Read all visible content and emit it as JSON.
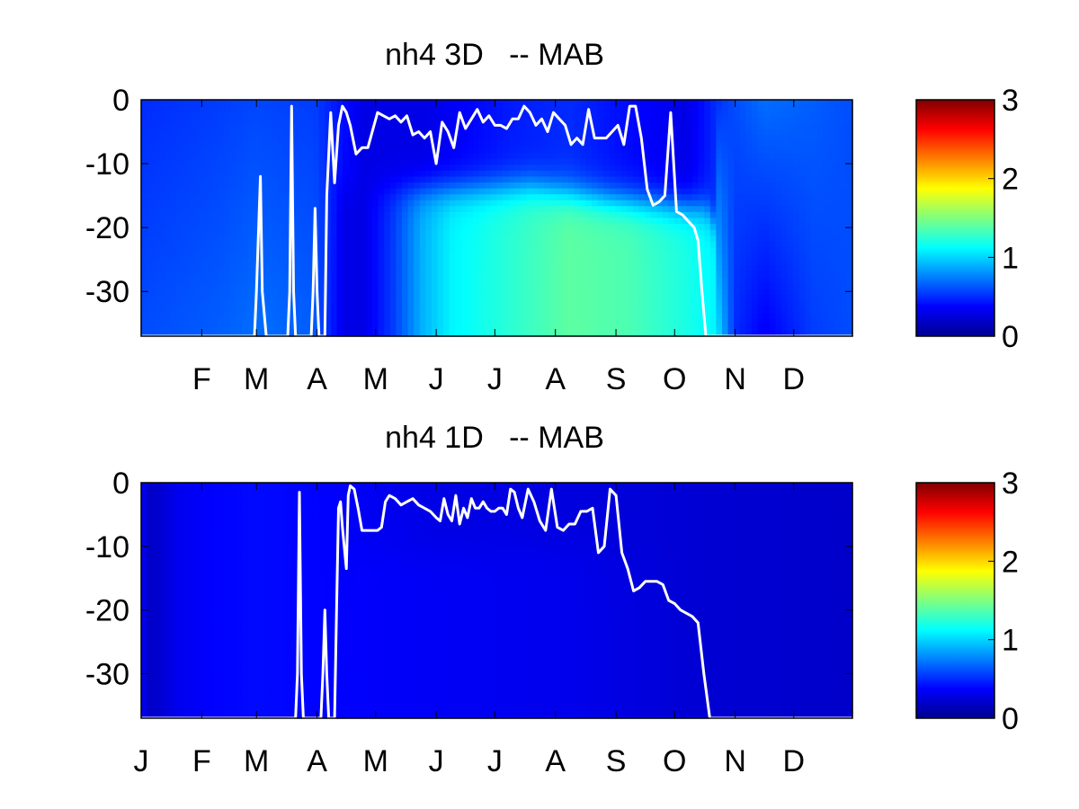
{
  "chart_data": [
    {
      "type": "heatmap",
      "title": "nh4 3D   -- MAB",
      "xlabel": "",
      "ylabel": "",
      "x_tick_labels": [
        "F",
        "M",
        "A",
        "M",
        "J",
        "J",
        "A",
        "S",
        "O",
        "N",
        "D"
      ],
      "x_tick_days": [
        32,
        60,
        91,
        121,
        152,
        182,
        213,
        244,
        274,
        305,
        335
      ],
      "xlim": [
        1,
        365
      ],
      "y_tick_labels": [
        "0",
        "-10",
        "-20",
        "-30"
      ],
      "y_ticks": [
        0,
        -10,
        -20,
        -30
      ],
      "ylim": [
        -37,
        0
      ],
      "colorbar": {
        "colormap": "jet",
        "clim": [
          0,
          3
        ],
        "tick_labels": [
          "0",
          "1",
          "2",
          "3"
        ],
        "ticks": [
          0,
          1,
          2,
          3
        ]
      },
      "line_color": "#ffffff",
      "field": {
        "surface_days": [
          1,
          40,
          60,
          90,
          105,
          115,
          130,
          145,
          160,
          190,
          220,
          250,
          280,
          295,
          305,
          320,
          345,
          365
        ],
        "surface_values": [
          0.5,
          0.55,
          0.58,
          0.55,
          0.4,
          0.3,
          0.3,
          0.3,
          0.35,
          0.45,
          0.5,
          0.4,
          0.3,
          0.5,
          0.6,
          0.7,
          0.65,
          0.6
        ],
        "deep_days": [
          1,
          40,
          60,
          90,
          105,
          115,
          130,
          145,
          160,
          190,
          220,
          250,
          280,
          295,
          305,
          320,
          345,
          365
        ],
        "deep_values": [
          0.6,
          0.65,
          0.7,
          0.65,
          0.3,
          0.3,
          0.55,
          0.9,
          1.1,
          1.25,
          1.4,
          1.35,
          1.2,
          1.1,
          0.5,
          0.35,
          0.55,
          0.6
        ],
        "stratified_days": [
          100,
          295
        ],
        "cline_days": [
          100,
          160,
          200,
          240,
          290,
          300,
          330
        ],
        "cline_depths": [
          -14,
          -14,
          -13.5,
          -15.5,
          -17,
          -22,
          -28
        ]
      },
      "line": {
        "days": [
          1,
          59,
          60,
          62,
          63,
          65,
          66,
          76,
          77,
          78,
          79,
          80,
          81,
          88,
          89,
          90,
          91,
          92,
          93,
          95,
          96,
          98,
          100,
          102,
          104,
          106,
          108,
          111,
          114,
          117,
          122,
          125,
          128,
          131,
          134,
          137,
          140,
          143,
          146,
          149,
          152,
          155,
          158,
          161,
          164,
          167,
          170,
          173,
          176,
          179,
          182,
          185,
          188,
          191,
          194,
          197,
          200,
          203,
          206,
          209,
          212,
          215,
          218,
          221,
          224,
          227,
          230,
          233,
          236,
          239,
          242,
          245,
          248,
          251,
          254,
          257,
          260,
          263,
          266,
          269,
          272,
          275,
          278,
          281,
          284,
          286,
          288,
          290,
          292,
          294,
          295,
          297,
          299,
          301,
          303,
          305,
          365
        ],
        "depths": [
          -37,
          -37,
          -30,
          -12,
          -30,
          -37,
          -37,
          -37,
          -30,
          -1,
          -30,
          -37,
          -37,
          -37,
          -30,
          -17,
          -30,
          -37,
          -37,
          -37,
          -15,
          -2,
          -13,
          -4,
          -1,
          -2,
          -4,
          -8.5,
          -7.5,
          -7.5,
          -2,
          -2.5,
          -3,
          -2.5,
          -3.5,
          -2.5,
          -5.5,
          -5,
          -6,
          -5,
          -10,
          -3.5,
          -5,
          -7.5,
          -2,
          -4.5,
          -3,
          -1.5,
          -3.5,
          -2.5,
          -4,
          -4,
          -4.5,
          -3,
          -3,
          -1,
          -2,
          -4,
          -3,
          -5,
          -2,
          -3,
          -4,
          -7,
          -6,
          -7,
          -1.5,
          -6,
          -6,
          -6,
          -5,
          -4,
          -7,
          -1,
          -1,
          -6,
          -14,
          -16.5,
          -16,
          -15,
          -2,
          -17.5,
          -18,
          -19,
          -20,
          -22,
          -30,
          -37,
          -37,
          -37,
          -37,
          -37,
          -37,
          -37,
          -37,
          -37,
          -37
        ]
      }
    },
    {
      "type": "heatmap",
      "title": "nh4 1D   -- MAB",
      "xlabel": "",
      "ylabel": "",
      "x_tick_labels": [
        "J",
        "F",
        "M",
        "A",
        "M",
        "J",
        "J",
        "A",
        "S",
        "O",
        "N",
        "D"
      ],
      "x_tick_days": [
        1,
        32,
        60,
        91,
        121,
        152,
        182,
        213,
        244,
        274,
        305,
        335
      ],
      "xlim": [
        1,
        365
      ],
      "y_tick_labels": [
        "0",
        "-10",
        "-20",
        "-30"
      ],
      "y_ticks": [
        0,
        -10,
        -20,
        -30
      ],
      "ylim": [
        -37,
        0
      ],
      "colorbar": {
        "colormap": "jet",
        "clim": [
          0,
          3
        ],
        "tick_labels": [
          "0",
          "1",
          "2",
          "3"
        ],
        "ticks": [
          0,
          1,
          2,
          3
        ]
      },
      "line_color": "#ffffff",
      "field": {
        "surface_days": [
          1,
          6,
          20,
          40,
          60,
          90,
          150,
          220,
          280,
          365
        ],
        "surface_values": [
          0.35,
          0.2,
          0.33,
          0.38,
          0.4,
          0.38,
          0.3,
          0.28,
          0.25,
          0.22
        ],
        "deep_days": [
          1,
          6,
          20,
          40,
          60,
          90,
          150,
          220,
          280,
          365
        ],
        "deep_values": [
          0.35,
          0.2,
          0.33,
          0.38,
          0.4,
          0.38,
          0.35,
          0.32,
          0.25,
          0.22
        ],
        "stratified_days": [
          110,
          290
        ],
        "cline_days": [
          110,
          200,
          290
        ],
        "cline_depths": [
          -12,
          -10,
          -12
        ]
      },
      "line": {
        "days": [
          1,
          80,
          81,
          82,
          83,
          84,
          85,
          93,
          94,
          95,
          96,
          97,
          98,
          100,
          101,
          102,
          103,
          104,
          106,
          107,
          108,
          110,
          112,
          114,
          116,
          118,
          120,
          122,
          124,
          126,
          128,
          131,
          134,
          137,
          140,
          143,
          146,
          149,
          152,
          154,
          156,
          158,
          160,
          162,
          164,
          166,
          168,
          170,
          172,
          174,
          176,
          178,
          180,
          182,
          184,
          186,
          188,
          190,
          192,
          194,
          196,
          199,
          202,
          205,
          208,
          211,
          214,
          217,
          220,
          223,
          226,
          229,
          232,
          235,
          238,
          241,
          244,
          247,
          250,
          253,
          256,
          259,
          262,
          265,
          268,
          271,
          274,
          277,
          280,
          283,
          286,
          289,
          292,
          294,
          295,
          297,
          299,
          301,
          303,
          305,
          365
        ],
        "depths": [
          -37,
          -37,
          -30,
          -1.5,
          -30,
          -37,
          -37,
          -37,
          -30,
          -20,
          -30,
          -37,
          -37,
          -37,
          -20,
          -4,
          -3,
          -7,
          -13.5,
          -2,
          -0.5,
          -1,
          -4,
          -7.5,
          -7.5,
          -7.5,
          -7.5,
          -7.5,
          -7,
          -3,
          -2,
          -2.5,
          -3.5,
          -3,
          -2.5,
          -3.5,
          -4,
          -4.5,
          -5.5,
          -6,
          -2.5,
          -5,
          -6,
          -2,
          -6.5,
          -4,
          -5.5,
          -2.5,
          -4,
          -4,
          -3,
          -4,
          -4.5,
          -4.5,
          -4,
          -4,
          -5,
          -1,
          -1.5,
          -4,
          -5.5,
          -1,
          -3,
          -6,
          -7.5,
          -1,
          -7,
          -7.5,
          -6.5,
          -6.5,
          -4.5,
          -4.5,
          -4,
          -11,
          -10,
          -1,
          -2,
          -11,
          -13.5,
          -17,
          -16.5,
          -15.5,
          -15.5,
          -15.5,
          -16,
          -18.5,
          -19,
          -20,
          -20.5,
          -21,
          -22,
          -30,
          -37,
          -37,
          -37,
          -37,
          -37,
          -37,
          -37,
          -37,
          -37
        ]
      }
    }
  ]
}
